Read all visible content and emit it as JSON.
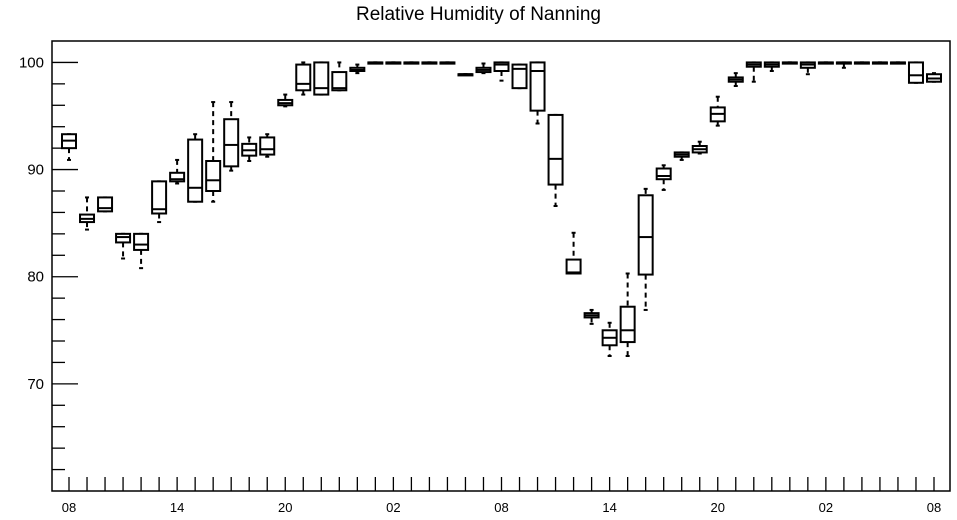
{
  "chart_data": {
    "type": "box",
    "title": "Relative Humidity of Nanning",
    "xlabel": "",
    "ylabel": "",
    "ylim": [
      60,
      102
    ],
    "yticks": [
      70,
      80,
      90,
      100
    ],
    "xticks": [
      {
        "hour_index": 0,
        "label": "08"
      },
      {
        "hour_index": 6,
        "label": "14"
      },
      {
        "hour_index": 12,
        "label": "20"
      },
      {
        "hour_index": 18,
        "label": "02"
      },
      {
        "hour_index": 24,
        "label": "08"
      },
      {
        "hour_index": 30,
        "label": "14"
      },
      {
        "hour_index": 36,
        "label": "20"
      },
      {
        "hour_index": 42,
        "label": "02"
      },
      {
        "hour_index": 48,
        "label": "08"
      }
    ],
    "x_hours_total": 48,
    "grid": false,
    "boxes": [
      {
        "hour_index": 0,
        "q1": 92.0,
        "median": 92.7,
        "q3": 93.3,
        "whisker_low": 90.9,
        "whisker_high": 93.3
      },
      {
        "hour_index": 1,
        "q1": 85.1,
        "median": 85.4,
        "q3": 85.8,
        "whisker_low": 84.4,
        "whisker_high": 87.4
      },
      {
        "hour_index": 2,
        "q1": 86.1,
        "median": 86.4,
        "q3": 87.4,
        "whisker_low": 86.1,
        "whisker_high": 87.4
      },
      {
        "hour_index": 3,
        "q1": 83.2,
        "median": 83.7,
        "q3": 84.0,
        "whisker_low": 81.7,
        "whisker_high": 84.0
      },
      {
        "hour_index": 4,
        "q1": 82.5,
        "median": 83.0,
        "q3": 84.0,
        "whisker_low": 80.8,
        "whisker_high": 84.0
      },
      {
        "hour_index": 5,
        "q1": 85.9,
        "median": 86.3,
        "q3": 88.9,
        "whisker_low": 85.1,
        "whisker_high": 88.9
      },
      {
        "hour_index": 6,
        "q1": 88.9,
        "median": 89.1,
        "q3": 89.7,
        "whisker_low": 88.7,
        "whisker_high": 90.9
      },
      {
        "hour_index": 7,
        "q1": 87.0,
        "median": 88.3,
        "q3": 92.8,
        "whisker_low": 87.0,
        "whisker_high": 93.3
      },
      {
        "hour_index": 8,
        "q1": 88.0,
        "median": 89.0,
        "q3": 90.8,
        "whisker_low": 87.0,
        "whisker_high": 96.3
      },
      {
        "hour_index": 9,
        "q1": 90.3,
        "median": 92.3,
        "q3": 94.7,
        "whisker_low": 89.9,
        "whisker_high": 96.3
      },
      {
        "hour_index": 10,
        "q1": 91.3,
        "median": 91.8,
        "q3": 92.4,
        "whisker_low": 90.8,
        "whisker_high": 93.0
      },
      {
        "hour_index": 11,
        "q1": 91.4,
        "median": 91.9,
        "q3": 93.0,
        "whisker_low": 91.2,
        "whisker_high": 93.3
      },
      {
        "hour_index": 12,
        "q1": 96.0,
        "median": 96.2,
        "q3": 96.5,
        "whisker_low": 95.9,
        "whisker_high": 97.0
      },
      {
        "hour_index": 13,
        "q1": 97.4,
        "median": 98.0,
        "q3": 99.8,
        "whisker_low": 97.0,
        "whisker_high": 100.0
      },
      {
        "hour_index": 14,
        "q1": 97.0,
        "median": 97.6,
        "q3": 100.0,
        "whisker_low": 97.0,
        "whisker_high": 100.0
      },
      {
        "hour_index": 15,
        "q1": 97.4,
        "median": 97.6,
        "q3": 99.1,
        "whisker_low": 97.4,
        "whisker_high": 100.0
      },
      {
        "hour_index": 16,
        "q1": 99.2,
        "median": 99.3,
        "q3": 99.5,
        "whisker_low": 99.0,
        "whisker_high": 99.8
      },
      {
        "hour_index": 17,
        "q1": 100.0,
        "median": 100.0,
        "q3": 100.0,
        "whisker_low": 100.0,
        "whisker_high": 100.0
      },
      {
        "hour_index": 18,
        "q1": 100.0,
        "median": 100.0,
        "q3": 100.0,
        "whisker_low": 100.0,
        "whisker_high": 100.0
      },
      {
        "hour_index": 19,
        "q1": 100.0,
        "median": 100.0,
        "q3": 100.0,
        "whisker_low": 100.0,
        "whisker_high": 100.0
      },
      {
        "hour_index": 20,
        "q1": 100.0,
        "median": 100.0,
        "q3": 100.0,
        "whisker_low": 100.0,
        "whisker_high": 100.0
      },
      {
        "hour_index": 21,
        "q1": 100.0,
        "median": 100.0,
        "q3": 100.0,
        "whisker_low": 100.0,
        "whisker_high": 100.0
      },
      {
        "hour_index": 22,
        "q1": 98.9,
        "median": 98.9,
        "q3": 98.9,
        "whisker_low": 98.9,
        "whisker_high": 98.9
      },
      {
        "hour_index": 23,
        "q1": 99.1,
        "median": 99.3,
        "q3": 99.5,
        "whisker_low": 99.0,
        "whisker_high": 99.9
      },
      {
        "hour_index": 24,
        "q1": 99.2,
        "median": 99.8,
        "q3": 100.0,
        "whisker_low": 98.3,
        "whisker_high": 100.0
      },
      {
        "hour_index": 25,
        "q1": 97.6,
        "median": 99.4,
        "q3": 99.8,
        "whisker_low": 97.6,
        "whisker_high": 99.8
      },
      {
        "hour_index": 26,
        "q1": 95.5,
        "median": 99.2,
        "q3": 100.0,
        "whisker_low": 94.3,
        "whisker_high": 100.0
      },
      {
        "hour_index": 27,
        "q1": 88.6,
        "median": 91.0,
        "q3": 95.1,
        "whisker_low": 86.6,
        "whisker_high": 95.1
      },
      {
        "hour_index": 28,
        "q1": 80.3,
        "median": 80.4,
        "q3": 81.6,
        "whisker_low": 80.3,
        "whisker_high": 84.1
      },
      {
        "hour_index": 29,
        "q1": 76.2,
        "median": 76.4,
        "q3": 76.6,
        "whisker_low": 75.6,
        "whisker_high": 76.9
      },
      {
        "hour_index": 30,
        "q1": 73.6,
        "median": 74.3,
        "q3": 75.0,
        "whisker_low": 72.6,
        "whisker_high": 75.7
      },
      {
        "hour_index": 31,
        "q1": 73.9,
        "median": 75.0,
        "q3": 77.2,
        "whisker_low": 72.6,
        "whisker_high": 80.3
      },
      {
        "hour_index": 32,
        "q1": 80.2,
        "median": 83.7,
        "q3": 87.6,
        "whisker_low": 76.9,
        "whisker_high": 88.2
      },
      {
        "hour_index": 33,
        "q1": 89.1,
        "median": 89.4,
        "q3": 90.1,
        "whisker_low": 88.1,
        "whisker_high": 90.4
      },
      {
        "hour_index": 34,
        "q1": 91.2,
        "median": 91.4,
        "q3": 91.6,
        "whisker_low": 90.9,
        "whisker_high": 91.6
      },
      {
        "hour_index": 35,
        "q1": 91.6,
        "median": 91.9,
        "q3": 92.2,
        "whisker_low": 91.5,
        "whisker_high": 92.6
      },
      {
        "hour_index": 36,
        "q1": 94.5,
        "median": 95.2,
        "q3": 95.8,
        "whisker_low": 94.1,
        "whisker_high": 96.8
      },
      {
        "hour_index": 37,
        "q1": 98.2,
        "median": 98.4,
        "q3": 98.6,
        "whisker_low": 97.8,
        "whisker_high": 99.0
      },
      {
        "hour_index": 38,
        "q1": 99.6,
        "median": 99.8,
        "q3": 100.0,
        "whisker_low": 98.2,
        "whisker_high": 100.0
      },
      {
        "hour_index": 39,
        "q1": 99.6,
        "median": 99.8,
        "q3": 100.0,
        "whisker_low": 99.2,
        "whisker_high": 100.0
      },
      {
        "hour_index": 40,
        "q1": 100.0,
        "median": 100.0,
        "q3": 100.0,
        "whisker_low": 100.0,
        "whisker_high": 100.0
      },
      {
        "hour_index": 41,
        "q1": 99.5,
        "median": 99.8,
        "q3": 100.0,
        "whisker_low": 98.9,
        "whisker_high": 100.0
      },
      {
        "hour_index": 42,
        "q1": 100.0,
        "median": 100.0,
        "q3": 100.0,
        "whisker_low": 100.0,
        "whisker_high": 100.0
      },
      {
        "hour_index": 43,
        "q1": 100.0,
        "median": 100.0,
        "q3": 100.0,
        "whisker_low": 99.5,
        "whisker_high": 100.0
      },
      {
        "hour_index": 44,
        "q1": 100.0,
        "median": 100.0,
        "q3": 100.0,
        "whisker_low": 100.0,
        "whisker_high": 100.0
      },
      {
        "hour_index": 45,
        "q1": 100.0,
        "median": 100.0,
        "q3": 100.0,
        "whisker_low": 100.0,
        "whisker_high": 100.0
      },
      {
        "hour_index": 46,
        "q1": 100.0,
        "median": 100.0,
        "q3": 100.0,
        "whisker_low": 100.0,
        "whisker_high": 100.0
      },
      {
        "hour_index": 47,
        "q1": 98.1,
        "median": 98.8,
        "q3": 100.0,
        "whisker_low": 98.1,
        "whisker_high": 100.0
      },
      {
        "hour_index": 48,
        "q1": 98.2,
        "median": 98.5,
        "q3": 98.9,
        "whisker_low": 98.2,
        "whisker_high": 99.0
      }
    ]
  }
}
